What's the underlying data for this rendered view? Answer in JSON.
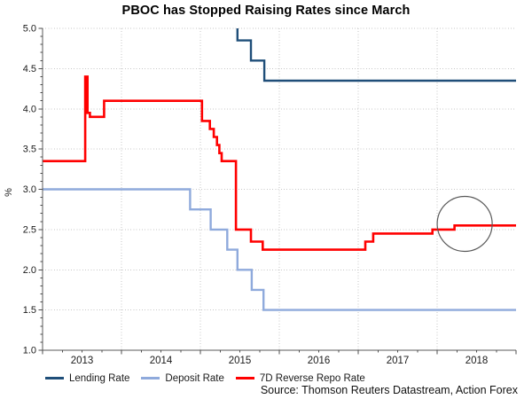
{
  "chart_data": {
    "type": "line",
    "title": "PBOC has Stopped Raising Rates since March",
    "ylabel": "%",
    "source": "Source: Thomson Reuters Datastream, Action Forex",
    "x_domain": [
      2013.0,
      2019.0
    ],
    "y_domain": [
      1.0,
      5.0
    ],
    "x_extend_to": 2019.0,
    "x_tick_years": [
      2013,
      2014,
      2015,
      2016,
      2017,
      2018
    ],
    "x_grid_years": [
      2014,
      2015,
      2016,
      2017,
      2018
    ],
    "y_ticks": [
      5.0,
      4.5,
      4.0,
      3.5,
      3.0,
      2.5,
      2.0,
      1.5,
      1.0
    ],
    "grid": "dotted",
    "legend_position": "bottom",
    "step_semantics": "each point [decimal_year, rate_percent] holds until the next point's x",
    "series": [
      {
        "name": "Lending Rate",
        "color": "#1F4E79",
        "width": 2.4,
        "step_points": [
          [
            2015.36,
            5.1
          ],
          [
            2015.47,
            4.85
          ],
          [
            2015.64,
            4.6
          ],
          [
            2015.81,
            4.35
          ]
        ]
      },
      {
        "name": "Deposit Rate",
        "color": "#8FAADC",
        "width": 2.4,
        "step_points": [
          [
            2013.0,
            3.0
          ],
          [
            2014.87,
            2.75
          ],
          [
            2015.13,
            2.5
          ],
          [
            2015.34,
            2.25
          ],
          [
            2015.47,
            2.0
          ],
          [
            2015.65,
            1.75
          ],
          [
            2015.8,
            1.5
          ]
        ]
      },
      {
        "name": "7D Reverse Repo Rate",
        "color": "#FF0000",
        "width": 2.6,
        "step_points": [
          [
            2013.0,
            3.35
          ],
          [
            2013.54,
            4.4
          ],
          [
            2013.57,
            3.95
          ],
          [
            2013.6,
            3.9
          ],
          [
            2013.78,
            4.1
          ],
          [
            2015.02,
            3.85
          ],
          [
            2015.12,
            3.75
          ],
          [
            2015.17,
            3.65
          ],
          [
            2015.21,
            3.55
          ],
          [
            2015.24,
            3.45
          ],
          [
            2015.27,
            3.35
          ],
          [
            2015.45,
            2.5
          ],
          [
            2015.64,
            2.35
          ],
          [
            2015.79,
            2.25
          ],
          [
            2017.09,
            2.35
          ],
          [
            2017.19,
            2.45
          ],
          [
            2017.94,
            2.5
          ],
          [
            2018.22,
            2.55
          ]
        ]
      }
    ],
    "annotation_circle": {
      "x_year": 2018.35,
      "y_value": 2.57,
      "radius_px": 31,
      "color": "#595959"
    },
    "style_colors": {
      "grid": "#c6c6c6",
      "axis": "#595959",
      "tick": "#4d4d4d",
      "tick_label": "#1a1a1a"
    }
  }
}
